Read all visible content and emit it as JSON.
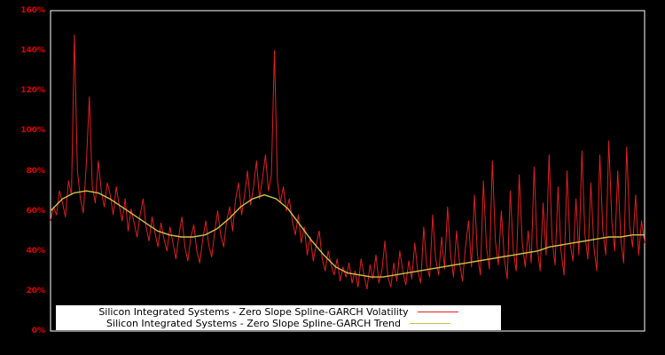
{
  "colors": {
    "background": "#000000",
    "frame": "#ffffff",
    "tick_label": "#e60000",
    "volatility": "#e01f1f",
    "trend": "#cfc04a",
    "legend_bg": "#ffffff",
    "legend_text": "#000000"
  },
  "chart_data": {
    "type": "line",
    "title": "",
    "xlabel": "",
    "ylabel": "",
    "ylim": [
      0,
      160
    ],
    "x_range": [
      0,
      100
    ],
    "grid": false,
    "legend_position": "bottom-left",
    "y_ticks": [
      {
        "value": 0,
        "label": "0%"
      },
      {
        "value": 20,
        "label": "20%"
      },
      {
        "value": 40,
        "label": "40%"
      },
      {
        "value": 60,
        "label": "60%"
      },
      {
        "value": 80,
        "label": "80%"
      },
      {
        "value": 100,
        "label": "100%"
      },
      {
        "value": 120,
        "label": "120%"
      },
      {
        "value": 140,
        "label": "140%"
      },
      {
        "value": 160,
        "label": "160%"
      }
    ],
    "series": [
      {
        "name": "Silicon Integrated Systems - Zero Slope Spline-GARCH Volatility",
        "color": "#e01f1f",
        "stroke_width": 1,
        "values": [
          55,
          62,
          58,
          70,
          64,
          57,
          75,
          68,
          148,
          80,
          66,
          59,
          84,
          117,
          72,
          64,
          85,
          70,
          62,
          74,
          68,
          58,
          72,
          63,
          55,
          66,
          50,
          61,
          54,
          47,
          58,
          66,
          52,
          45,
          57,
          49,
          42,
          54,
          46,
          40,
          52,
          44,
          36,
          48,
          57,
          42,
          35,
          47,
          53,
          40,
          34,
          46,
          55,
          43,
          37,
          50,
          60,
          48,
          42,
          55,
          62,
          50,
          66,
          74,
          58,
          68,
          80,
          63,
          72,
          85,
          66,
          76,
          88,
          70,
          78,
          140,
          75,
          64,
          72,
          60,
          66,
          55,
          48,
          58,
          44,
          52,
          38,
          47,
          35,
          43,
          50,
          36,
          30,
          40,
          33,
          28,
          36,
          25,
          32,
          27,
          34,
          24,
          30,
          22,
          36,
          28,
          21,
          33,
          26,
          38,
          24,
          30,
          45,
          27,
          22,
          34,
          25,
          40,
          30,
          23,
          35,
          26,
          44,
          30,
          24,
          52,
          33,
          27,
          58,
          36,
          28,
          47,
          31,
          62,
          38,
          27,
          50,
          34,
          25,
          42,
          55,
          32,
          68,
          38,
          28,
          75,
          42,
          31,
          85,
          45,
          33,
          60,
          36,
          26,
          70,
          40,
          30,
          78,
          44,
          32,
          50,
          34,
          82,
          42,
          30,
          64,
          38,
          88,
          46,
          33,
          72,
          40,
          28,
          80,
          44,
          35,
          66,
          38,
          90,
          48,
          36,
          74,
          42,
          30,
          88,
          50,
          38,
          95,
          55,
          40,
          80,
          46,
          34,
          92,
          52,
          42,
          68,
          38,
          55,
          44
        ]
      },
      {
        "name": "Silicon Integrated Systems - Zero Slope Spline-GARCH Trend",
        "color": "#cfc04a",
        "stroke_width": 1.4,
        "values": [
          60,
          66,
          69,
          70,
          69,
          66,
          62,
          58,
          54,
          50,
          48,
          47,
          47,
          48,
          51,
          56,
          62,
          66,
          68,
          66,
          61,
          53,
          45,
          38,
          32,
          29,
          28,
          27,
          27,
          28,
          29,
          30,
          31,
          32,
          33,
          34,
          35,
          36,
          37,
          38,
          39,
          40,
          42,
          43,
          44,
          45,
          46,
          47,
          47,
          48,
          48
        ]
      }
    ]
  },
  "legend": {
    "entries": [
      {
        "label": "Silicon Integrated Systems - Zero Slope Spline-GARCH Volatility"
      },
      {
        "label": "Silicon Integrated Systems - Zero Slope Spline-GARCH Trend"
      }
    ]
  }
}
